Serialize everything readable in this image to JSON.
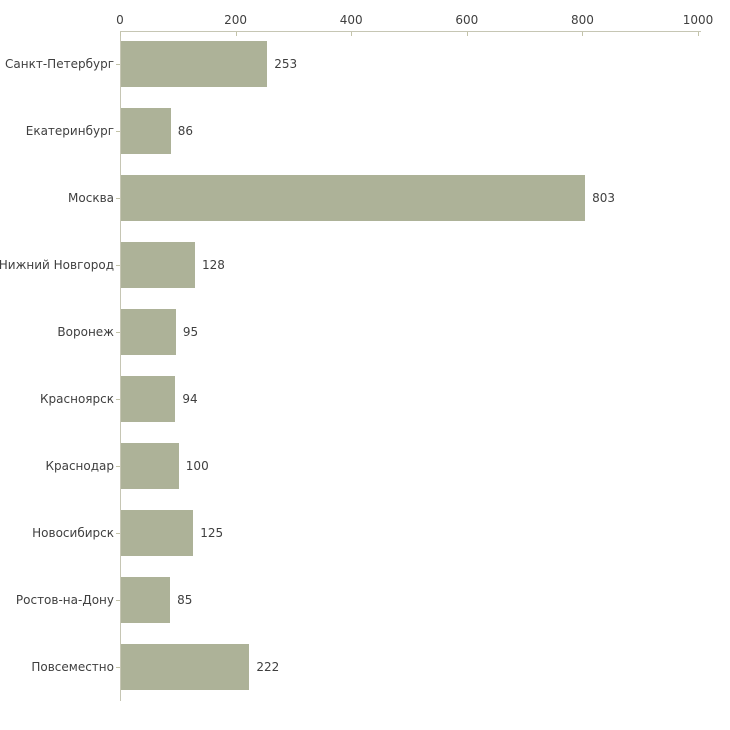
{
  "chart_data": {
    "type": "bar",
    "orientation": "horizontal",
    "title": "",
    "xlabel": "",
    "ylabel": "",
    "categories": [
      "Санкт-Петербург",
      "Екатеринбург",
      "Москва",
      "Нижний Новгород",
      "Воронеж",
      "Красноярск",
      "Краснодар",
      "Новосибирск",
      "Ростов-на-Дону",
      "Повсеместно"
    ],
    "values": [
      253,
      86,
      803,
      128,
      95,
      94,
      100,
      125,
      85,
      222
    ],
    "value_labels_shown": true,
    "x_ticks": [
      0,
      200,
      400,
      600,
      800,
      1000
    ],
    "xlim": [
      0,
      1000
    ],
    "axis_position": "top",
    "grid": false,
    "legend": "none",
    "colors": {
      "bar_fill": "#adb298",
      "axis_line": "#c6c6b4",
      "tick_mark": "#c3c3a9",
      "text": "#3f3f3f",
      "background": "#ffffff"
    }
  }
}
